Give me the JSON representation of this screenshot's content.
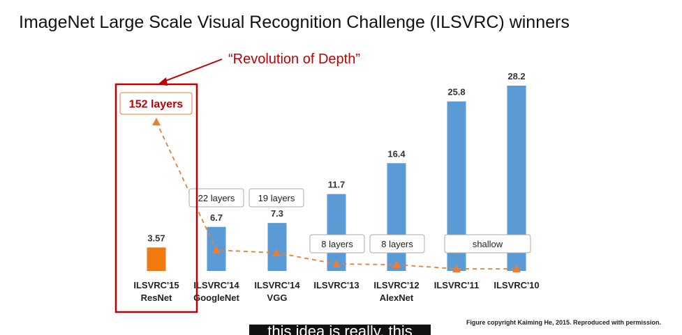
{
  "slide": {
    "title": "ImageNet Large Scale Visual Recognition Challenge (ILSVRC) winners",
    "credit": "Figure copyright Kaiming He, 2015. Reproduced with permission.",
    "caption": "this idea is really, this"
  },
  "chart_data": {
    "type": "bar",
    "categories": [
      [
        "ILSVRC'15",
        "ResNet"
      ],
      [
        "ILSVRC'14",
        "GoogleNet"
      ],
      [
        "ILSVRC'14",
        "VGG"
      ],
      [
        "ILSVRC'13",
        ""
      ],
      [
        "ILSVRC'12",
        "AlexNet"
      ],
      [
        "ILSVRC'11",
        ""
      ],
      [
        "ILSVRC'10",
        ""
      ]
    ],
    "values": [
      3.57,
      6.7,
      7.3,
      11.7,
      16.4,
      25.8,
      28.2
    ],
    "value_labels": [
      "3.57",
      "6.7",
      "7.3",
      "11.7",
      "16.4",
      "25.8",
      "28.2"
    ],
    "depth_labels": [
      "152 layers",
      "22 layers",
      "19 layers",
      "8 layers",
      "8 layers",
      "shallow",
      ""
    ],
    "ylim": [
      0,
      28.2
    ],
    "grid": false,
    "annotation": "“Revolution of Depth”",
    "colors": {
      "highlight_bar": "#f07a10",
      "bar": "#5b9bd5",
      "trend": "#ed7d31",
      "emphasis": "#c00000"
    }
  }
}
